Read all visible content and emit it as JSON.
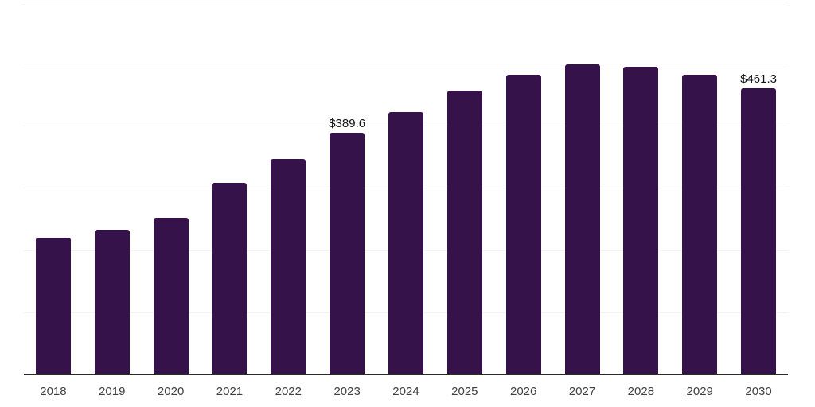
{
  "chart_style": {
    "background": "#ffffff",
    "bar_color": "#351249",
    "axis_color": "#2b2b2b",
    "gridline_color": "#f3f3f3",
    "top_border_color": "#e6e6e6",
    "tick_label_color": "#404040",
    "value_label_color": "#141414"
  },
  "chart_data": {
    "type": "bar",
    "title": "",
    "xlabel": "",
    "ylabel": "",
    "categories": [
      "2018",
      "2019",
      "2020",
      "2021",
      "2022",
      "2023",
      "2024",
      "2025",
      "2026",
      "2027",
      "2028",
      "2029",
      "2030"
    ],
    "values": [
      221,
      234,
      253,
      310,
      348,
      389.6,
      423,
      458,
      483,
      500,
      497,
      483,
      461.3
    ],
    "data_labels": [
      "",
      "",
      "",
      "",
      "",
      "$389.6",
      "",
      "",
      "",
      "",
      "",
      "",
      "$461.3"
    ],
    "ylim": [
      0,
      600
    ],
    "gridline_step": 100,
    "grid": "horizontal",
    "legend_position": "none",
    "y_axis_labels_visible": false
  }
}
